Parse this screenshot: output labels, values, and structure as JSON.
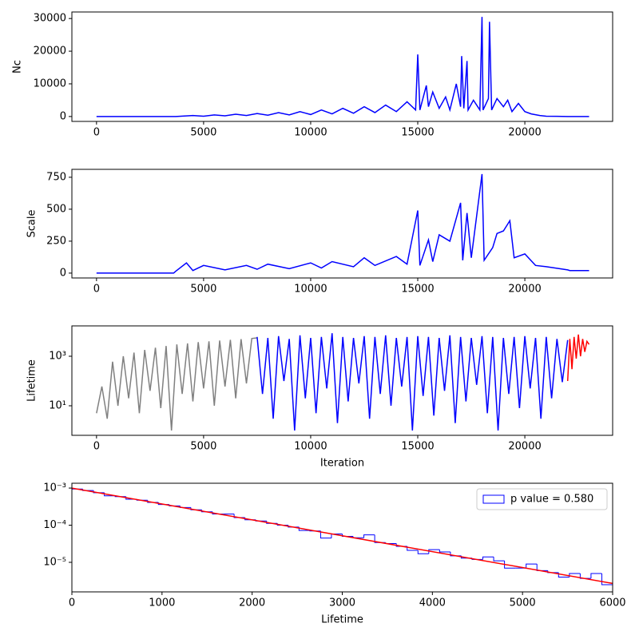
{
  "chart_data": [
    {
      "type": "line",
      "ylabel": "Nc",
      "xlim": [
        -1150,
        24100
      ],
      "ylim": [
        -1500,
        32000
      ],
      "xticks": [
        0,
        5000,
        10000,
        15000,
        20000
      ],
      "yticks": [
        0,
        10000,
        20000,
        30000
      ],
      "series": [
        {
          "color": "#0000ff",
          "x": [
            0,
            3700,
            4500,
            5000,
            5500,
            6000,
            6500,
            7000,
            7500,
            8000,
            8500,
            9000,
            9500,
            10000,
            10500,
            11000,
            11500,
            12000,
            12500,
            13000,
            13500,
            14000,
            14500,
            14900,
            15000,
            15100,
            15400,
            15500,
            15700,
            16000,
            16300,
            16500,
            16800,
            17000,
            17050,
            17150,
            17300,
            17350,
            17600,
            17900,
            18000,
            18050,
            18300,
            18350,
            18450,
            18700,
            19000,
            19200,
            19400,
            19700,
            20000,
            20300,
            20700,
            21000,
            21500,
            22000,
            23000
          ],
          "values": [
            0,
            0,
            300,
            100,
            500,
            200,
            700,
            300,
            900,
            400,
            1200,
            500,
            1500,
            600,
            2000,
            800,
            2500,
            1000,
            3000,
            1200,
            3500,
            1500,
            4500,
            2000,
            19000,
            2000,
            9500,
            3000,
            7500,
            2500,
            6000,
            2000,
            10000,
            3000,
            18500,
            2500,
            17000,
            2000,
            5000,
            2000,
            30500,
            2000,
            5500,
            29000,
            2000,
            5500,
            3000,
            5000,
            1500,
            4000,
            1500,
            800,
            300,
            100,
            50,
            0,
            0
          ]
        }
      ]
    },
    {
      "type": "line",
      "ylabel": "Scale",
      "xlim": [
        -1150,
        24100
      ],
      "ylim": [
        -38,
        812
      ],
      "xticks": [
        0,
        5000,
        10000,
        15000,
        20000
      ],
      "yticks": [
        0,
        250,
        500,
        750
      ],
      "series": [
        {
          "color": "#0000ff",
          "x": [
            0,
            3600,
            3700,
            4200,
            4500,
            5000,
            6000,
            7000,
            7500,
            8000,
            9000,
            10000,
            10500,
            11000,
            12000,
            12500,
            13000,
            14000,
            14500,
            15000,
            15100,
            15500,
            15700,
            16000,
            16500,
            17000,
            17100,
            17300,
            17500,
            18000,
            18100,
            18500,
            18700,
            19000,
            19300,
            19500,
            20000,
            20500,
            21000,
            22000,
            22100,
            23000
          ],
          "values": [
            0,
            0,
            15,
            80,
            20,
            60,
            25,
            60,
            30,
            70,
            35,
            80,
            40,
            90,
            50,
            120,
            60,
            130,
            70,
            490,
            60,
            260,
            90,
            300,
            250,
            550,
            100,
            470,
            120,
            775,
            100,
            200,
            310,
            330,
            410,
            120,
            150,
            60,
            50,
            25,
            20,
            20
          ]
        }
      ]
    },
    {
      "type": "line",
      "ylabel": "Lifetime",
      "xlabel": "Iteration",
      "ylog": true,
      "xlim": [
        -1150,
        24100
      ],
      "ylim": [
        0.64,
        16800
      ],
      "xticks": [
        0,
        5000,
        10000,
        15000,
        20000
      ],
      "yticks": [
        {
          "value": 10,
          "label": "10¹"
        },
        {
          "value": 1000,
          "label": "10³"
        }
      ],
      "series": [
        {
          "color": "#808080",
          "x": [
            0,
            250,
            500,
            750,
            1000,
            1250,
            1500,
            1750,
            2000,
            2250,
            2500,
            2750,
            3000,
            3250,
            3500,
            3750,
            4000,
            4250,
            4500,
            4750,
            5000,
            5250,
            5500,
            5750,
            6000,
            6250,
            6500,
            6750,
            7000,
            7250,
            7500
          ],
          "values": [
            5,
            60,
            3,
            600,
            10,
            1000,
            20,
            1400,
            5,
            1800,
            40,
            2200,
            8,
            2600,
            1,
            3000,
            30,
            3300,
            15,
            3700,
            50,
            4000,
            10,
            4300,
            60,
            4600,
            20,
            4900,
            80,
            5200,
            5500
          ]
        },
        {
          "color": "#0000ff",
          "x": [
            7500,
            7750,
            8000,
            8250,
            8500,
            8750,
            9000,
            9250,
            9500,
            9750,
            10000,
            10250,
            10500,
            10750,
            11000,
            11250,
            11500,
            11750,
            12000,
            12250,
            12500,
            12750,
            13000,
            13250,
            13500,
            13750,
            14000,
            14250,
            14500,
            14750,
            15000,
            15250,
            15500,
            15750,
            16000,
            16250,
            16500,
            16750,
            17000,
            17250,
            17500,
            17750,
            18000,
            18250,
            18500,
            18750,
            19000,
            19250,
            19500,
            19750,
            20000,
            20250,
            20500,
            20750,
            21000,
            21250,
            21500,
            21750,
            22000
          ],
          "values": [
            6000,
            30,
            5500,
            3,
            6500,
            100,
            5000,
            1,
            7000,
            20,
            5500,
            5,
            6000,
            50,
            8500,
            2,
            6000,
            15,
            5500,
            80,
            6500,
            3,
            6000,
            30,
            7000,
            10,
            5500,
            60,
            6000,
            1,
            6500,
            25,
            6000,
            4,
            5500,
            40,
            7000,
            2,
            6000,
            15,
            5500,
            70,
            6500,
            5,
            6000,
            1,
            5500,
            30,
            6000,
            8,
            6500,
            50,
            5500,
            3,
            6000,
            20,
            5000,
            90,
            4500
          ]
        },
        {
          "color": "#ff0000",
          "x": [
            22000,
            22100,
            22200,
            22300,
            22400,
            22500,
            22600,
            22700,
            22800,
            22900,
            23000
          ],
          "values": [
            100,
            5000,
            300,
            6000,
            800,
            7500,
            1000,
            5000,
            1500,
            4000,
            3000
          ]
        }
      ]
    },
    {
      "type": "histogram",
      "xlabel": "Lifetime",
      "ylog": true,
      "xlim": [
        0,
        6000
      ],
      "ylim": [
        1.6e-06,
        0.00135
      ],
      "xticks": [
        0,
        1000,
        2000,
        3000,
        4000,
        5000,
        6000
      ],
      "yticks": [
        {
          "value": 1e-05,
          "label": "10⁻⁵"
        },
        {
          "value": 0.0001,
          "label": "10⁻⁴"
        },
        {
          "value": 0.001,
          "label": "10⁻³"
        }
      ],
      "legend": "upper right",
      "series_name": "p value = 0.580",
      "color": "#0000ff",
      "bins": [
        0,
        120,
        240,
        360,
        480,
        600,
        720,
        840,
        960,
        1080,
        1200,
        1320,
        1440,
        1560,
        1680,
        1800,
        1920,
        2040,
        2160,
        2280,
        2400,
        2520,
        2640,
        2760,
        2880,
        3000,
        3120,
        3240,
        3360,
        3480,
        3600,
        3720,
        3840,
        3960,
        4080,
        4200,
        4320,
        4440,
        4560,
        4680,
        4800,
        4920,
        5040,
        5160,
        5280,
        5400,
        5520,
        5640,
        5760,
        5880,
        6000
      ],
      "values": [
        0.00094,
        0.00086,
        0.00075,
        0.00062,
        0.00059,
        0.0005,
        0.00047,
        0.00041,
        0.00036,
        0.00033,
        0.0003,
        0.00026,
        0.00023,
        0.0002,
        0.0002,
        0.00016,
        0.00014,
        0.00013,
        0.000112,
        0.0001,
        8.9e-05,
        7.2e-05,
        7e-05,
        4.5e-05,
        5.8e-05,
        5e-05,
        4.6e-05,
        5.5e-05,
        3.4e-05,
        3.2e-05,
        2.7e-05,
        2.1e-05,
        1.7e-05,
        2.2e-05,
        1.9e-05,
        1.5e-05,
        1.3e-05,
        1.2e-05,
        1.4e-05,
        1.1e-05,
        7e-06,
        7e-06,
        9e-06,
        6e-06,
        5.3e-06,
        4e-06,
        5e-06,
        3.7e-06,
        5e-06,
        2.5e-06
      ],
      "fit": {
        "color": "#ff0000",
        "x": [
          0,
          6000
        ],
        "values": [
          0.001,
          2.7e-06
        ]
      }
    }
  ]
}
